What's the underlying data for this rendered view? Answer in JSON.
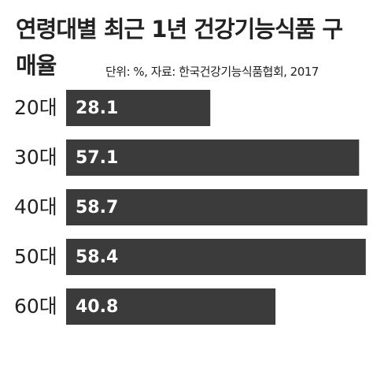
{
  "chart_data": {
    "type": "bar",
    "orientation": "horizontal",
    "title": "연령대별 최근 1년 건강기능식품 구매율",
    "subtitle": "단위: %, 자료: 한국건강기능식품협회, 2017",
    "categories": [
      "20대",
      "30대",
      "40대",
      "50대",
      "60대"
    ],
    "values": [
      28.1,
      57.1,
      58.7,
      58.4,
      40.8
    ],
    "color": "#3b3b3b"
  }
}
